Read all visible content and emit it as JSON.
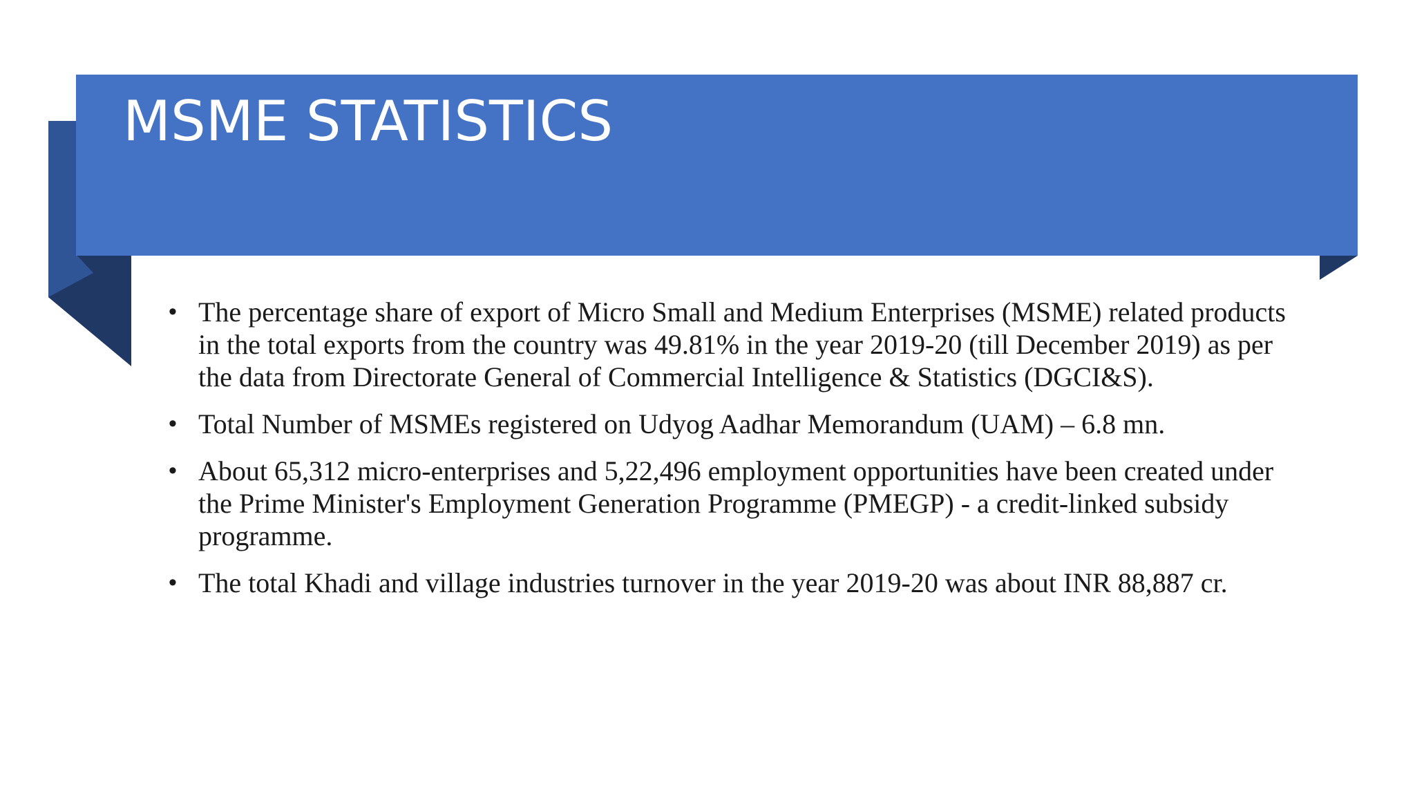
{
  "slide": {
    "title": "MSME STATISTICS",
    "accent_color": "#4472C4",
    "accent_dark": "#2F5597",
    "accent_darker": "#203864",
    "bullet_symbol": "•",
    "bullets": [
      "The percentage share of export of Micro Small and Medium Enterprises (MSME) related products in the total exports from the country was 49.81% in the year 2019-20 (till December 2019) as per the data from Directorate General of Commercial Intelligence & Statistics (DGCI&S).",
      "Total Number of MSMEs registered on Udyog Aadhar Memorandum (UAM) – 6.8 mn.",
      "About 65,312 micro-enterprises and 5,22,496 employment opportunities have been created under the Prime Minister's Employment Generation Programme (PMEGP) - a credit-linked subsidy programme.",
      "The total Khadi and village industries turnover in the year 2019-20 was about INR 88,887 cr."
    ]
  }
}
